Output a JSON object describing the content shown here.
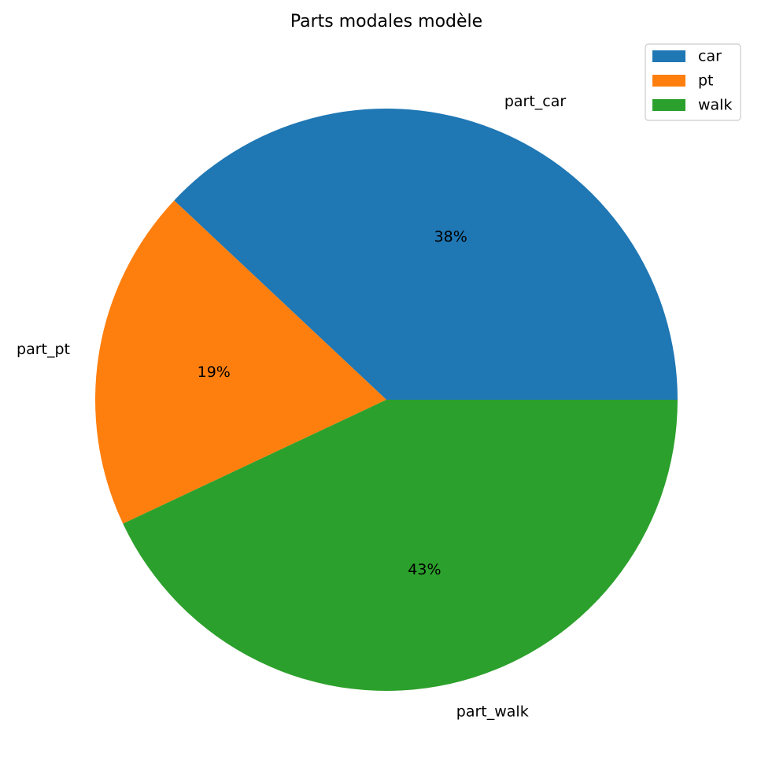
{
  "chart_data": {
    "type": "pie",
    "title": "Parts modales modèle",
    "slices": [
      {
        "label": "part_car",
        "legend": "car",
        "value": 38,
        "pct_label": "38%",
        "color": "#1f77b4"
      },
      {
        "label": "part_pt",
        "legend": "pt",
        "value": 19,
        "pct_label": "19%",
        "color": "#ff7f0e"
      },
      {
        "label": "part_walk",
        "legend": "walk",
        "value": 43,
        "pct_label": "43%",
        "color": "#2ca02c"
      }
    ],
    "start_angle_deg": 0,
    "direction": "counterclockwise",
    "legend_position": "top-right"
  }
}
